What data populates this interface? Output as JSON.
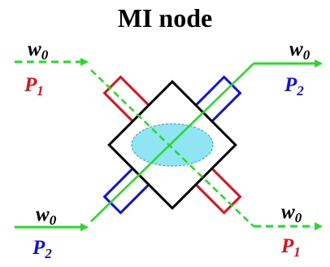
{
  "title": "MI node",
  "waves": {
    "top_left": {
      "main": "w",
      "sub": "0"
    },
    "top_right": {
      "main": "w",
      "sub": "0"
    },
    "bottom_left": {
      "main": "w",
      "sub": "0"
    },
    "bottom_right": {
      "main": "w",
      "sub": "0"
    }
  },
  "ports": {
    "top_left": {
      "main": "P",
      "sub": "1"
    },
    "top_right": {
      "main": "P",
      "sub": "2"
    },
    "bottom_left": {
      "main": "P",
      "sub": "2"
    },
    "bottom_right": {
      "main": "P",
      "sub": "1"
    }
  },
  "colors": {
    "path_p1": "#e0101a",
    "path_p2": "#1010e0",
    "guide": "#22dd22",
    "node_fill": "#ffffff",
    "node_stroke": "#000000",
    "region_fill": "#8fe6f2",
    "region_stroke": "#2aa0c0",
    "label_p1": "#e0101a",
    "label_p2": "#1010e0"
  }
}
